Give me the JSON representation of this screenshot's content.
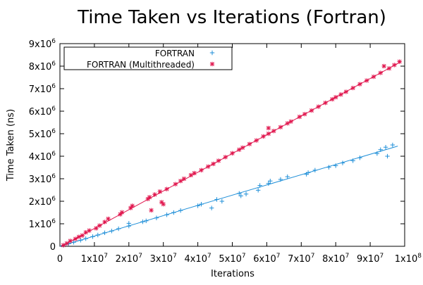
{
  "chart_data": {
    "type": "scatter",
    "title": "Time Taken vs Iterations (Fortran)",
    "xlabel": "Iterations",
    "ylabel": "Time Taken (ns)",
    "xlim": [
      0,
      100000000
    ],
    "ylim": [
      0,
      9000000
    ],
    "grid": false,
    "legend_position": "top-left",
    "x_ticks": [
      {
        "value": 0,
        "mant": "0",
        "exp": ""
      },
      {
        "value": 10000000,
        "mant": "1x10",
        "exp": "7"
      },
      {
        "value": 20000000,
        "mant": "2x10",
        "exp": "7"
      },
      {
        "value": 30000000,
        "mant": "3x10",
        "exp": "7"
      },
      {
        "value": 40000000,
        "mant": "4x10",
        "exp": "7"
      },
      {
        "value": 50000000,
        "mant": "5x10",
        "exp": "7"
      },
      {
        "value": 60000000,
        "mant": "6x10",
        "exp": "7"
      },
      {
        "value": 70000000,
        "mant": "7x10",
        "exp": "7"
      },
      {
        "value": 80000000,
        "mant": "8x10",
        "exp": "7"
      },
      {
        "value": 90000000,
        "mant": "9x10",
        "exp": "7"
      },
      {
        "value": 100000000,
        "mant": "1x10",
        "exp": "8"
      }
    ],
    "y_ticks": [
      {
        "value": 0,
        "mant": "0",
        "exp": ""
      },
      {
        "value": 1000000,
        "mant": "1x10",
        "exp": "6"
      },
      {
        "value": 2000000,
        "mant": "2x10",
        "exp": "6"
      },
      {
        "value": 3000000,
        "mant": "3x10",
        "exp": "6"
      },
      {
        "value": 4000000,
        "mant": "4x10",
        "exp": "6"
      },
      {
        "value": 5000000,
        "mant": "5x10",
        "exp": "6"
      },
      {
        "value": 6000000,
        "mant": "6x10",
        "exp": "6"
      },
      {
        "value": 7000000,
        "mant": "7x10",
        "exp": "6"
      },
      {
        "value": 8000000,
        "mant": "8x10",
        "exp": "6"
      },
      {
        "value": 9000000,
        "mant": "9x10",
        "exp": "6"
      }
    ],
    "series": [
      {
        "name": "FORTRAN",
        "color": "#1f8fd8",
        "marker": "plus",
        "fit_line": [
          [
            0,
            0
          ],
          [
            98000000,
            4450000
          ]
        ],
        "points": [
          [
            1000000,
            45000
          ],
          [
            2500000,
            110000
          ],
          [
            4000000,
            180000
          ],
          [
            6000000,
            270000
          ],
          [
            7500000,
            340000
          ],
          [
            9500000,
            430000
          ],
          [
            11000000,
            500000
          ],
          [
            13000000,
            600000
          ],
          [
            15000000,
            680000
          ],
          [
            17000000,
            780000
          ],
          [
            20000000,
            900000
          ],
          [
            20000000,
            1020000
          ],
          [
            24000000,
            1090000
          ],
          [
            25000000,
            1130000
          ],
          [
            28000000,
            1260000
          ],
          [
            31000000,
            1400000
          ],
          [
            33000000,
            1500000
          ],
          [
            35000000,
            1590000
          ],
          [
            40000000,
            1800000
          ],
          [
            41000000,
            1870000
          ],
          [
            44000000,
            1700000
          ],
          [
            45500000,
            2080000
          ],
          [
            47000000,
            2000000
          ],
          [
            52000000,
            2350000
          ],
          [
            52500000,
            2240000
          ],
          [
            54000000,
            2320000
          ],
          [
            57500000,
            2490000
          ],
          [
            58000000,
            2700000
          ],
          [
            60500000,
            2790000
          ],
          [
            61000000,
            2900000
          ],
          [
            64000000,
            2970000
          ],
          [
            66000000,
            3090000
          ],
          [
            71500000,
            3200000
          ],
          [
            72000000,
            3270000
          ],
          [
            74000000,
            3380000
          ],
          [
            78000000,
            3510000
          ],
          [
            80000000,
            3580000
          ],
          [
            82000000,
            3700000
          ],
          [
            85000000,
            3800000
          ],
          [
            87000000,
            3930000
          ],
          [
            92000000,
            4120000
          ],
          [
            93000000,
            4290000
          ],
          [
            94500000,
            4400000
          ],
          [
            95000000,
            4000000
          ],
          [
            96500000,
            4500000
          ]
        ]
      },
      {
        "name": "FORTRAN (Multithreaded)",
        "color": "#e0144c",
        "marker": "star",
        "fit_line": [
          [
            500000,
            0
          ],
          [
            99000000,
            8200000
          ]
        ],
        "points": [
          [
            1000000,
            50000
          ],
          [
            2000000,
            130000
          ],
          [
            3000000,
            240000
          ],
          [
            4500000,
            330000
          ],
          [
            5500000,
            420000
          ],
          [
            6500000,
            480000
          ],
          [
            7500000,
            620000
          ],
          [
            8500000,
            700000
          ],
          [
            10500000,
            800000
          ],
          [
            11500000,
            920000
          ],
          [
            13000000,
            1080000
          ],
          [
            14000000,
            1220000
          ],
          [
            17500000,
            1420000
          ],
          [
            18000000,
            1510000
          ],
          [
            20500000,
            1700000
          ],
          [
            21000000,
            1800000
          ],
          [
            25500000,
            2100000
          ],
          [
            26000000,
            2180000
          ],
          [
            26500000,
            1600000
          ],
          [
            27500000,
            2300000
          ],
          [
            29000000,
            2430000
          ],
          [
            29500000,
            1960000
          ],
          [
            30000000,
            1870000
          ],
          [
            31000000,
            2540000
          ],
          [
            33500000,
            2760000
          ],
          [
            35000000,
            2900000
          ],
          [
            36000000,
            3000000
          ],
          [
            38000000,
            3160000
          ],
          [
            39000000,
            3250000
          ],
          [
            41000000,
            3380000
          ],
          [
            43000000,
            3540000
          ],
          [
            44500000,
            3660000
          ],
          [
            46000000,
            3800000
          ],
          [
            48000000,
            3960000
          ],
          [
            50000000,
            4130000
          ],
          [
            52000000,
            4290000
          ],
          [
            53000000,
            4380000
          ],
          [
            55000000,
            4540000
          ],
          [
            57000000,
            4700000
          ],
          [
            59000000,
            4880000
          ],
          [
            60500000,
            5000000
          ],
          [
            60500000,
            5250000
          ],
          [
            62000000,
            5120000
          ],
          [
            64000000,
            5290000
          ],
          [
            66000000,
            5460000
          ],
          [
            67000000,
            5540000
          ],
          [
            69500000,
            5750000
          ],
          [
            71000000,
            5870000
          ],
          [
            73000000,
            6030000
          ],
          [
            75000000,
            6200000
          ],
          [
            77000000,
            6370000
          ],
          [
            79000000,
            6530000
          ],
          [
            80000000,
            6620000
          ],
          [
            81500000,
            6740000
          ],
          [
            83000000,
            6860000
          ],
          [
            85000000,
            7030000
          ],
          [
            87000000,
            7200000
          ],
          [
            89000000,
            7360000
          ],
          [
            91000000,
            7530000
          ],
          [
            93000000,
            7700000
          ],
          [
            94000000,
            8000000
          ],
          [
            95500000,
            7900000
          ],
          [
            97000000,
            8050000
          ],
          [
            98500000,
            8200000
          ]
        ]
      }
    ]
  }
}
